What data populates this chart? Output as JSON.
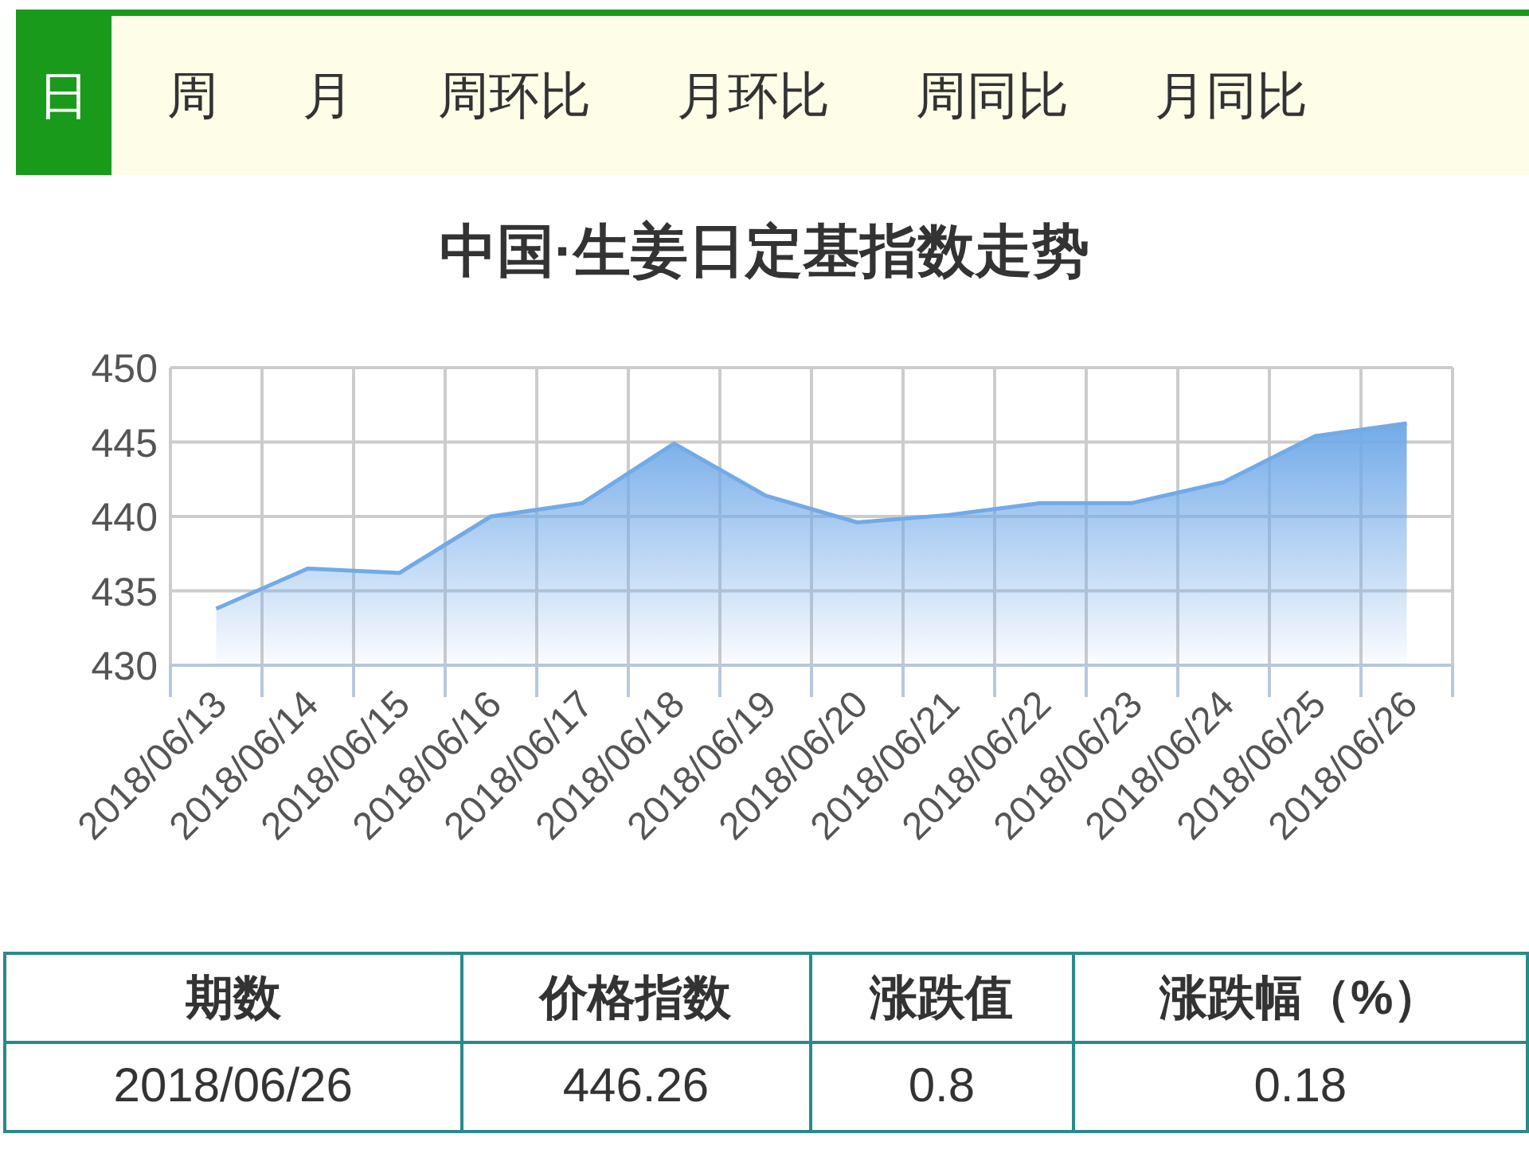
{
  "chart_data": [
    {
      "type": "other",
      "annotations": [
        "日",
        "周",
        "月",
        "周环比",
        "月环比",
        "周同比",
        "月同比"
      ]
    },
    {
      "type": "area",
      "title": "中国·生姜日定基指数走势",
      "categories": [
        "2018/06/13",
        "2018/06/14",
        "2018/06/15",
        "2018/06/16",
        "2018/06/17",
        "2018/06/18",
        "2018/06/19",
        "2018/06/20",
        "2018/06/21",
        "2018/06/22",
        "2018/06/23",
        "2018/06/24",
        "2018/06/25",
        "2018/06/26"
      ],
      "values": [
        433.8,
        436.5,
        436.2,
        440.0,
        440.9,
        444.9,
        441.4,
        439.6,
        440.1,
        440.9,
        440.9,
        442.3,
        445.4,
        446.26
      ],
      "color": "#72aae8",
      "ylim": [
        430,
        450
      ],
      "yticks": [
        430,
        435,
        440,
        445,
        450
      ],
      "grid": true
    },
    {
      "type": "other",
      "annotations": [
        "期数",
        "价格指数",
        "涨跌值",
        "涨跌幅（%）",
        "2018/06/26",
        "446.26",
        "0.8",
        "0.18"
      ]
    }
  ]
}
